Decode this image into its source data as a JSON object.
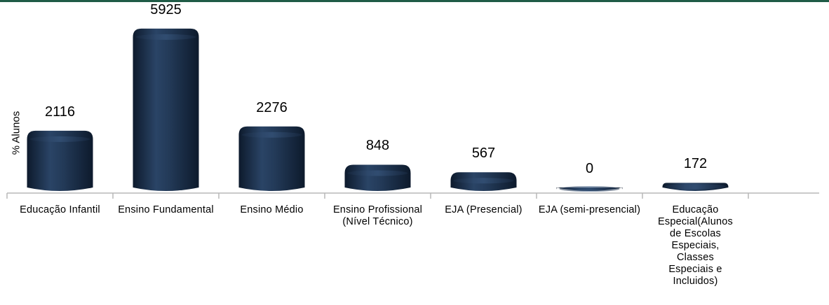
{
  "chart_data": {
    "type": "bar",
    "ylabel": "% Alunos",
    "categories": [
      "Educação Infantil",
      "Ensino Fundamental",
      "Ensino Médio",
      "Ensino Profissional (Nível Técnico)",
      "EJA (Presencial)",
      "EJA (semi-presencial)",
      "Educação Especial(Alunos de Escolas Especiais, Classes Especiais e Incluidos)"
    ],
    "values": [
      2116,
      5925,
      2276,
      848,
      567,
      0,
      172
    ],
    "value_labels": [
      "2116",
      "5925",
      "2276",
      "848",
      "567",
      "0",
      "172"
    ],
    "ylim": [
      0,
      6000
    ],
    "grid": false,
    "bar_color": "#1b2f4b"
  }
}
